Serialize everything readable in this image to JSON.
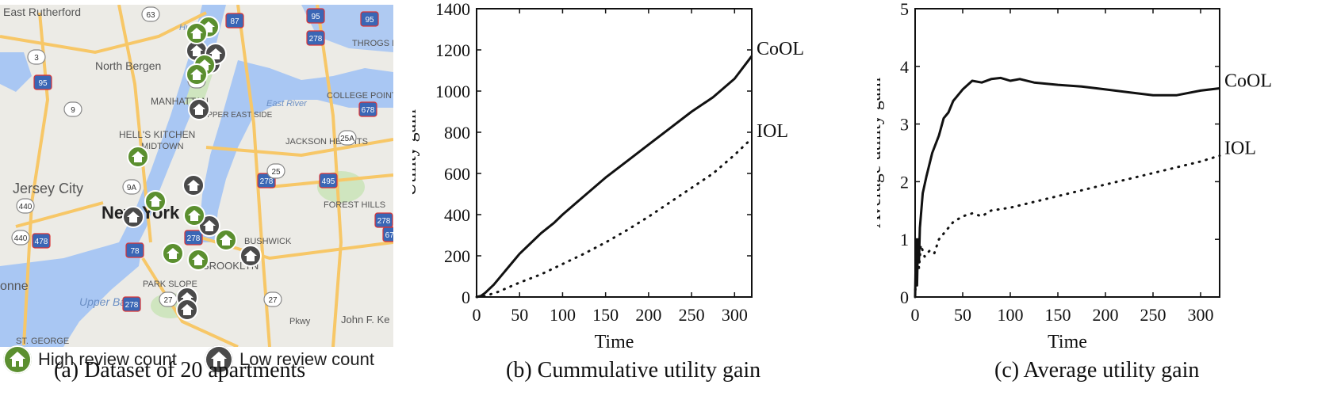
{
  "map": {
    "labels": [
      "East Rutherford",
      "North Bergen",
      "MANHATTAN",
      "UPPER EAST SIDE",
      "HELL'S KITCHEN",
      "MIDTOWN",
      "Jersey City",
      "New York",
      "JACKSON HEIGHTS",
      "FOREST HILLS",
      "PARK SLOPE",
      "BROOKLYN",
      "BUSHWICK",
      "Upper Bay",
      "ST. GEORGE",
      "John F. Ke",
      "onne",
      "THROGS N",
      "COLLEGE POINT",
      "East River",
      "Pkwy",
      "Hudson"
    ],
    "highways": [
      "63",
      "95",
      "95",
      "87",
      "278",
      "9A",
      "3",
      "95",
      "9",
      "678",
      "25A",
      "278",
      "25",
      "495",
      "9A",
      "440",
      "278",
      "440",
      "478",
      "78",
      "278",
      "27",
      "27",
      "278",
      "678"
    ],
    "pins_high": 10,
    "pins_low": 10,
    "colors": {
      "high": "#5b8f2f",
      "low": "#4a4a4a",
      "water": "#a9c7f3",
      "land": "#ecebe6",
      "park": "#cfe5bf",
      "road": "#f7c767"
    }
  },
  "legend": {
    "high_label": "High review count",
    "low_label": "Low review count",
    "high_icon": "house-icon",
    "low_icon": "house-icon"
  },
  "captions": {
    "a": "(a)  Dataset of 20 apartments",
    "b": "(b)  Cummulative utility gain",
    "c": "(c)  Average utility gain"
  },
  "chart_data": [
    {
      "type": "line",
      "title": "Cummulative utility gain",
      "xlabel": "Time",
      "ylabel": "Utility gain",
      "xlim": [
        0,
        320
      ],
      "ylim": [
        0,
        1400
      ],
      "xticks": [
        0,
        50,
        100,
        150,
        200,
        250,
        300
      ],
      "yticks": [
        0,
        200,
        400,
        600,
        800,
        1000,
        1200,
        1400
      ],
      "series": [
        {
          "name": "CoOL",
          "style": "solid",
          "x": [
            0,
            5,
            10,
            20,
            30,
            40,
            50,
            60,
            75,
            90,
            100,
            125,
            150,
            175,
            200,
            225,
            250,
            275,
            300,
            320
          ],
          "y": [
            0,
            5,
            20,
            60,
            110,
            160,
            210,
            250,
            310,
            360,
            400,
            490,
            580,
            660,
            740,
            820,
            900,
            970,
            1060,
            1170
          ]
        },
        {
          "name": "IOL",
          "style": "dotted",
          "x": [
            0,
            10,
            25,
            50,
            75,
            100,
            125,
            150,
            175,
            200,
            225,
            250,
            275,
            300,
            320
          ],
          "y": [
            0,
            5,
            25,
            70,
            110,
            160,
            210,
            265,
            325,
            390,
            460,
            530,
            600,
            690,
            770
          ]
        }
      ]
    },
    {
      "type": "line",
      "title": "Average utility gain",
      "xlabel": "Time",
      "ylabel": "Average utility gain",
      "xlim": [
        0,
        320
      ],
      "ylim": [
        0,
        5
      ],
      "xticks": [
        0,
        50,
        100,
        150,
        200,
        250,
        300
      ],
      "yticks": [
        0,
        1,
        2,
        3,
        4,
        5
      ],
      "series": [
        {
          "name": "CoOL",
          "style": "solid",
          "x": [
            0,
            1,
            2,
            3,
            4,
            5,
            8,
            12,
            18,
            25,
            30,
            35,
            40,
            50,
            60,
            70,
            80,
            90,
            100,
            110,
            125,
            150,
            175,
            200,
            225,
            250,
            275,
            300,
            320
          ],
          "y": [
            0,
            1.0,
            0.2,
            1.0,
            0.6,
            1.2,
            1.8,
            2.1,
            2.5,
            2.8,
            3.1,
            3.2,
            3.4,
            3.6,
            3.75,
            3.72,
            3.78,
            3.8,
            3.75,
            3.78,
            3.72,
            3.68,
            3.65,
            3.6,
            3.55,
            3.5,
            3.5,
            3.58,
            3.62
          ]
        },
        {
          "name": "IOL",
          "style": "dotted",
          "x": [
            0,
            2,
            4,
            6,
            10,
            15,
            20,
            25,
            30,
            40,
            50,
            60,
            70,
            80,
            100,
            125,
            150,
            175,
            200,
            225,
            250,
            275,
            300,
            320
          ],
          "y": [
            0,
            1.0,
            0.5,
            0.9,
            0.7,
            0.8,
            0.75,
            1.0,
            1.1,
            1.3,
            1.4,
            1.45,
            1.4,
            1.5,
            1.55,
            1.65,
            1.75,
            1.85,
            1.95,
            2.05,
            2.15,
            2.25,
            2.35,
            2.45
          ]
        }
      ]
    }
  ]
}
